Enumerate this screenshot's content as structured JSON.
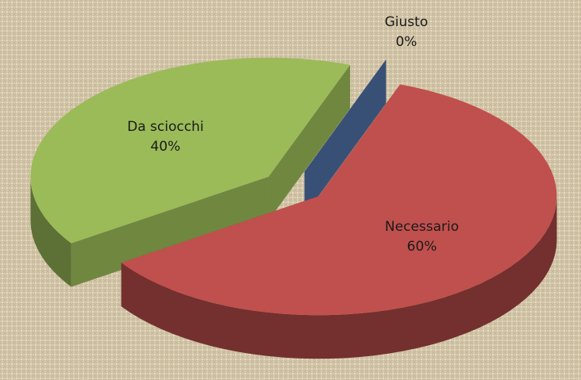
{
  "chart_data": {
    "type": "pie3d",
    "categories": [
      "Giusto",
      "Necessario",
      "Da sciocchi"
    ],
    "values": [
      0,
      60,
      40
    ],
    "value_labels": [
      "0%",
      "60%",
      "40%"
    ],
    "colors": [
      "#4f6fa4",
      "#c0504d",
      "#9bbb59"
    ]
  }
}
